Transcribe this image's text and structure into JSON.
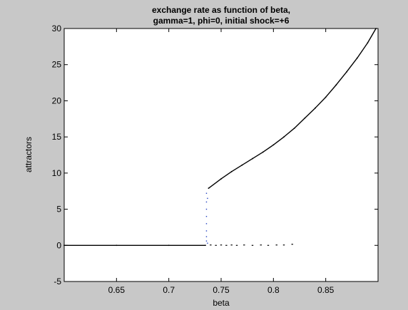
{
  "chart_data": {
    "type": "scatter",
    "title": [
      "exchange rate as function of beta,",
      "gamma=1, phi=0, initial shock=+6"
    ],
    "xlabel": "beta",
    "ylabel": "attractors",
    "xlim": [
      0.6,
      0.9
    ],
    "ylim": [
      -5,
      30
    ],
    "xticks": [
      0.65,
      0.7,
      0.75,
      0.8,
      0.85
    ],
    "yticks": [
      -5,
      0,
      5,
      10,
      15,
      20,
      25,
      30
    ],
    "grid": false,
    "colors": {
      "series": "#000000",
      "transition_points": "#1f3fbf",
      "axes_background": "#ffffff",
      "figure_background": "#c8c8c8"
    },
    "series": [
      {
        "points": [
          [
            0.6,
            0.0
          ],
          [
            0.65,
            0.0
          ],
          [
            0.7,
            0.0
          ],
          [
            0.735,
            0.0
          ],
          [
            0.738,
            7.9
          ],
          [
            0.75,
            9.2
          ],
          [
            0.76,
            10.2
          ],
          [
            0.77,
            11.1
          ],
          [
            0.78,
            12.0
          ],
          [
            0.79,
            12.9
          ],
          [
            0.8,
            13.9
          ],
          [
            0.81,
            15.0
          ],
          [
            0.82,
            16.2
          ],
          [
            0.83,
            17.6
          ],
          [
            0.84,
            19.0
          ],
          [
            0.85,
            20.5
          ],
          [
            0.86,
            22.2
          ],
          [
            0.87,
            24.0
          ],
          [
            0.88,
            25.9
          ],
          [
            0.89,
            28.0
          ],
          [
            0.898,
            30.0
          ]
        ]
      }
    ],
    "transition_points": [
      [
        0.736,
        7.2
      ],
      [
        0.736,
        6.0
      ],
      [
        0.736,
        5.0
      ],
      [
        0.736,
        4.0
      ],
      [
        0.736,
        3.0
      ],
      [
        0.736,
        2.0
      ],
      [
        0.736,
        1.2
      ],
      [
        0.736,
        0.6
      ],
      [
        0.737,
        0.3
      ],
      [
        0.737,
        6.5
      ]
    ],
    "scatter_near_zero": [
      [
        0.74,
        0.05
      ],
      [
        0.745,
        0.0
      ],
      [
        0.75,
        0.05
      ],
      [
        0.755,
        0.0
      ],
      [
        0.76,
        0.05
      ],
      [
        0.765,
        0.0
      ],
      [
        0.772,
        0.05
      ],
      [
        0.78,
        0.0
      ],
      [
        0.788,
        0.05
      ],
      [
        0.795,
        0.0
      ],
      [
        0.803,
        0.05
      ],
      [
        0.81,
        0.05
      ],
      [
        0.818,
        0.15
      ]
    ]
  }
}
